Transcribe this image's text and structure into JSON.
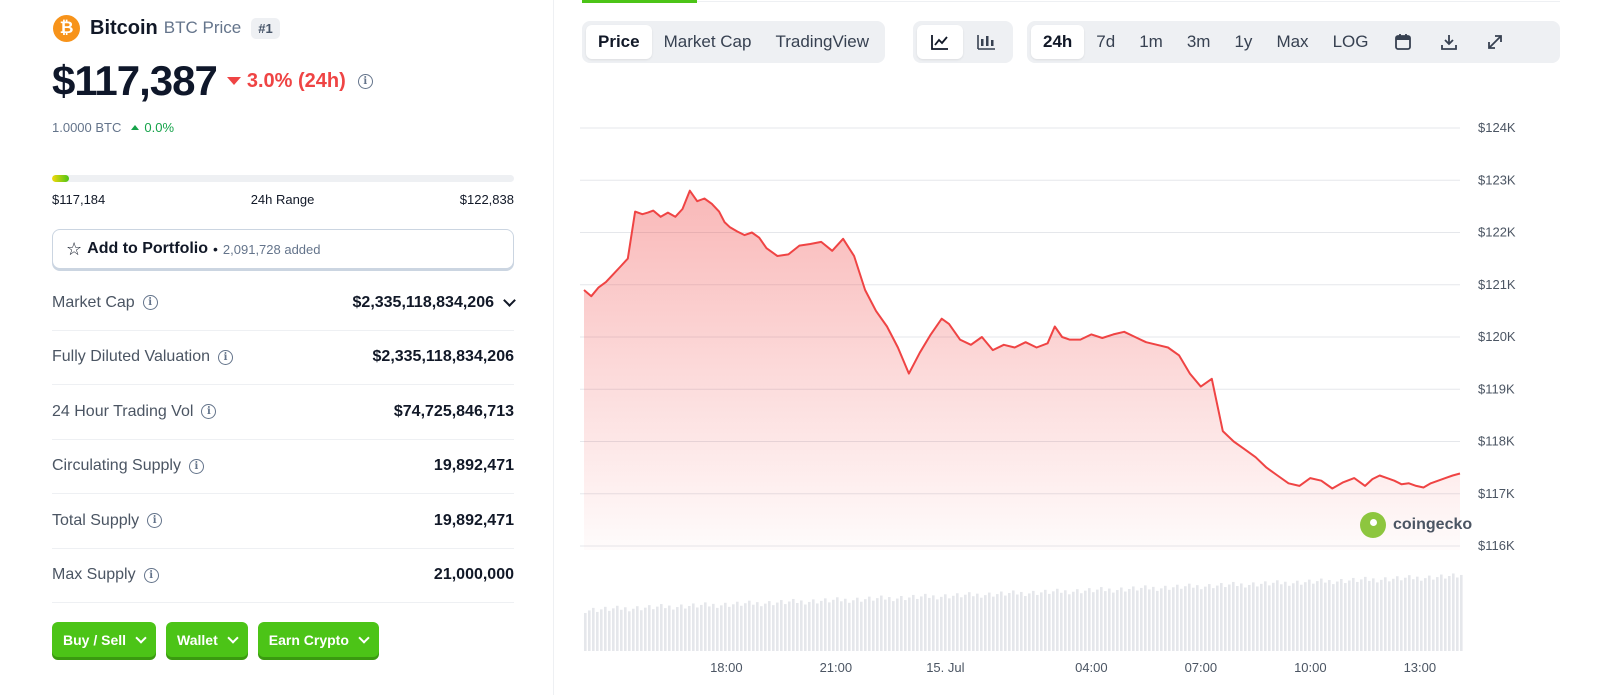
{
  "coin": {
    "name": "Bitcoin",
    "subtitle": "BTC Price",
    "rank": "#1",
    "logo_glyph": "₿",
    "price": "$117,387",
    "change_24h": "3.0% (24h)",
    "btc_amount": "1.0000 BTC",
    "btc_change": "0.0%"
  },
  "range": {
    "low": "$117,184",
    "label": "24h Range",
    "high": "$122,838",
    "position_fraction": 0.036
  },
  "portfolio": {
    "label": "Add to Portfolio",
    "separator": "•",
    "count": "2,091,728 added"
  },
  "stats": [
    {
      "label": "Market Cap",
      "value": "$2,335,118,834,206"
    },
    {
      "label": "Fully Diluted Valuation",
      "value": "$2,335,118,834,206"
    },
    {
      "label": "24 Hour Trading Vol",
      "value": "$74,725,846,713"
    },
    {
      "label": "Circulating Supply",
      "value": "19,892,471"
    },
    {
      "label": "Total Supply",
      "value": "19,892,471"
    },
    {
      "label": "Max Supply",
      "value": "21,000,000"
    }
  ],
  "actions": {
    "buy_sell": "Buy / Sell",
    "wallet": "Wallet",
    "earn": "Earn Crypto"
  },
  "toolbar": {
    "tabs": [
      "Price",
      "Market Cap",
      "TradingView"
    ],
    "active_tab": "Price",
    "chart_icons": [
      "line-chart-icon",
      "candlestick-icon"
    ],
    "ranges": [
      "24h",
      "7d",
      "1m",
      "3m",
      "1y",
      "Max",
      "LOG"
    ],
    "active_range": "24h",
    "tool_icons": [
      "calendar-icon",
      "download-icon",
      "expand-icon"
    ]
  },
  "watermark": "coingecko",
  "colors": {
    "accent_green": "#4cc417",
    "down_red": "#ef4444",
    "up_green": "#16a34a",
    "btc_orange": "#f7931a"
  },
  "chart_data": {
    "type": "area",
    "y_tick_labels": [
      "$124K",
      "$123K",
      "$122K",
      "$121K",
      "$120K",
      "$119K",
      "$118K",
      "$117K",
      "$116K"
    ],
    "y_ticks": [
      124000,
      123000,
      122000,
      121000,
      120000,
      119000,
      118000,
      117000,
      116000
    ],
    "ylim": [
      116000,
      124000
    ],
    "x_tick_labels": [
      "18:00",
      "21:00",
      "15. Jul",
      "04:00",
      "07:00",
      "10:00",
      "13:00"
    ],
    "x_tick_hours": [
      3.9,
      6.9,
      9.9,
      13.9,
      16.9,
      19.9,
      22.9
    ],
    "xlim_hours": [
      0,
      24
    ],
    "line_color": "#ef4444",
    "grid": true,
    "x_hours": [
      0,
      0.2,
      0.4,
      0.6,
      0.8,
      1.0,
      1.2,
      1.4,
      1.6,
      1.75,
      1.9,
      2.1,
      2.3,
      2.5,
      2.7,
      2.9,
      3.1,
      3.3,
      3.5,
      3.7,
      3.85,
      4.0,
      4.2,
      4.4,
      4.6,
      4.8,
      5.0,
      5.3,
      5.6,
      5.9,
      6.2,
      6.5,
      6.8,
      7.1,
      7.4,
      7.7,
      8.0,
      8.3,
      8.6,
      8.9,
      9.2,
      9.5,
      9.8,
      10.0,
      10.3,
      10.6,
      10.9,
      11.2,
      11.5,
      11.8,
      12.1,
      12.4,
      12.7,
      12.9,
      13.1,
      13.3,
      13.6,
      13.9,
      14.2,
      14.5,
      14.8,
      15.1,
      15.4,
      15.7,
      16.0,
      16.3,
      16.6,
      16.9,
      17.2,
      17.5,
      17.8,
      18.1,
      18.4,
      18.7,
      19.0,
      19.3,
      19.6,
      19.9,
      20.2,
      20.5,
      20.8,
      21.1,
      21.4,
      21.6,
      21.8,
      22.0,
      22.2,
      22.4,
      22.6,
      22.8,
      23.0,
      23.2,
      23.4,
      23.6,
      23.8,
      24.0
    ],
    "values": [
      120900,
      120780,
      120950,
      121050,
      121200,
      121350,
      121500,
      122400,
      122350,
      122380,
      122420,
      122300,
      122380,
      122300,
      122450,
      122800,
      122600,
      122650,
      122550,
      122400,
      122200,
      122100,
      122020,
      121950,
      122000,
      121900,
      121700,
      121550,
      121580,
      121750,
      121780,
      121820,
      121650,
      121880,
      121550,
      120900,
      120500,
      120200,
      119800,
      119300,
      119700,
      120050,
      120350,
      120250,
      119950,
      119850,
      120000,
      119750,
      119850,
      119800,
      119900,
      119800,
      119880,
      120200,
      120000,
      119950,
      119950,
      120050,
      119980,
      120050,
      120100,
      120000,
      119900,
      119850,
      119800,
      119650,
      119300,
      119050,
      119200,
      118200,
      118000,
      117850,
      117700,
      117500,
      117350,
      117200,
      117150,
      117300,
      117250,
      117100,
      117220,
      117300,
      117150,
      117280,
      117350,
      117300,
      117250,
      117180,
      117200,
      117150,
      117120,
      117200,
      117250,
      117300,
      117350,
      117387
    ]
  }
}
